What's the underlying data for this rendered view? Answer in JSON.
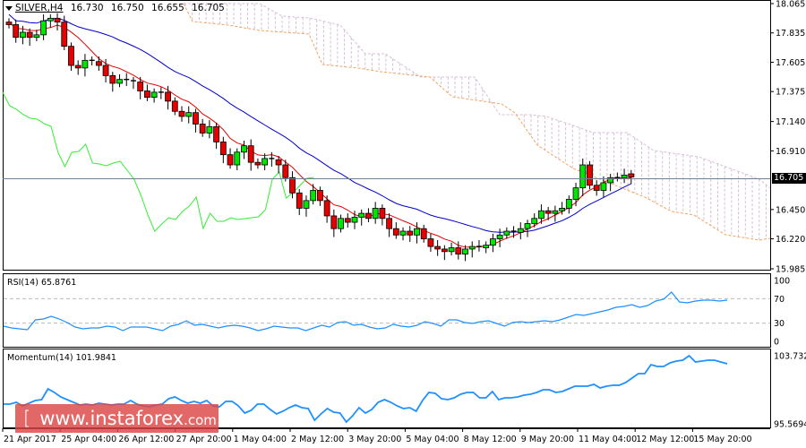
{
  "header": {
    "symbol": "SILVER,H4",
    "open": "16.730",
    "high": "16.750",
    "low": "16.655",
    "close": "16.705"
  },
  "price_axis": {
    "ticks": [
      "18.065",
      "17.835",
      "17.605",
      "17.375",
      "17.140",
      "16.910",
      "16.705",
      "16.450",
      "16.220",
      "15.985"
    ],
    "current_price": "16.705"
  },
  "rsi": {
    "label": "RSI(14) 65.8761",
    "ticks": [
      "100",
      "70",
      "30",
      "0"
    ]
  },
  "momentum": {
    "label": "Momentum(14) 101.9841",
    "ticks": [
      "103.7321",
      "95.5694"
    ]
  },
  "time_axis": {
    "labels": [
      "21 Apr 2017",
      "25 Apr 04:00",
      "26 Apr 12:00",
      "27 Apr 20:00",
      "1 May 04:00",
      "2 May 12:00",
      "3 May 20:00",
      "5 May 04:00",
      "8 May 12:00",
      "9 May 20:00",
      "11 May 04:00",
      "12 May 12:00",
      "15 May 20:00"
    ]
  },
  "watermark": {
    "bracket_open": "[",
    "domain": "www.instaforex",
    "tld": ".com",
    "bracket_close": "]"
  },
  "colors": {
    "bull": "#00e600",
    "bear": "#e60000",
    "tenkan": "#e60000",
    "kijun": "#0000cc",
    "chikou": "#33ee33",
    "cloud_a": "#f4a460",
    "cloud_b": "#d8bfd8",
    "indicator": "#1e90ff",
    "price_line": "#708090"
  },
  "chart_data": [
    {
      "type": "candlestick",
      "title": "SILVER,H4",
      "ylim": [
        15.985,
        18.065
      ],
      "x_labels": [
        "21 Apr 2017",
        "25 Apr 04:00",
        "26 Apr 12:00",
        "27 Apr 20:00",
        "1 May 04:00",
        "2 May 12:00",
        "3 May 20:00",
        "5 May 04:00",
        "8 May 12:00",
        "9 May 20:00",
        "11 May 04:00",
        "12 May 12:00",
        "15 May 20:00"
      ],
      "ohlc_summary": {
        "open": 16.73,
        "high": 16.75,
        "low": 16.655,
        "close": 16.705
      },
      "closes_approx": [
        17.9,
        17.8,
        17.84,
        17.8,
        17.82,
        17.93,
        17.95,
        17.92,
        17.73,
        17.58,
        17.56,
        17.62,
        17.61,
        17.58,
        17.5,
        17.44,
        17.47,
        17.46,
        17.45,
        17.38,
        17.33,
        17.37,
        17.37,
        17.3,
        17.22,
        17.18,
        17.21,
        17.12,
        17.05,
        17.1,
        16.98,
        16.88,
        16.8,
        16.9,
        16.95,
        16.82,
        16.8,
        16.85,
        16.84,
        16.8,
        16.7,
        16.58,
        16.46,
        16.52,
        16.6,
        16.52,
        16.4,
        16.3,
        16.38,
        16.35,
        16.39,
        16.42,
        16.38,
        16.46,
        16.38,
        16.3,
        16.25,
        16.28,
        16.25,
        16.3,
        16.22,
        16.16,
        16.14,
        16.12,
        16.15,
        16.1,
        16.14,
        16.16,
        16.15,
        16.17,
        16.22,
        16.25,
        16.28,
        16.27,
        16.3,
        16.34,
        16.38,
        16.44,
        16.42,
        16.44,
        16.46,
        16.53,
        16.62,
        16.8,
        16.64,
        16.6,
        16.66,
        16.7,
        16.7,
        16.72,
        16.705
      ],
      "series": [
        {
          "name": "Tenkan-sen",
          "color": "#e60000"
        },
        {
          "name": "Kijun-sen",
          "color": "#0000cc"
        },
        {
          "name": "Chikou Span",
          "color": "#33ee33"
        },
        {
          "name": "Senkou Span A/B (cloud)",
          "color": "#f4a460"
        }
      ]
    },
    {
      "type": "line",
      "title": "RSI(14) 65.8761",
      "ylim": [
        0,
        100
      ],
      "levels": [
        70,
        30
      ],
      "last_value": 65.8761
    },
    {
      "type": "line",
      "title": "Momentum(14) 101.9841",
      "ylim": [
        95.5694,
        103.7321
      ],
      "last_value": 101.9841
    }
  ]
}
